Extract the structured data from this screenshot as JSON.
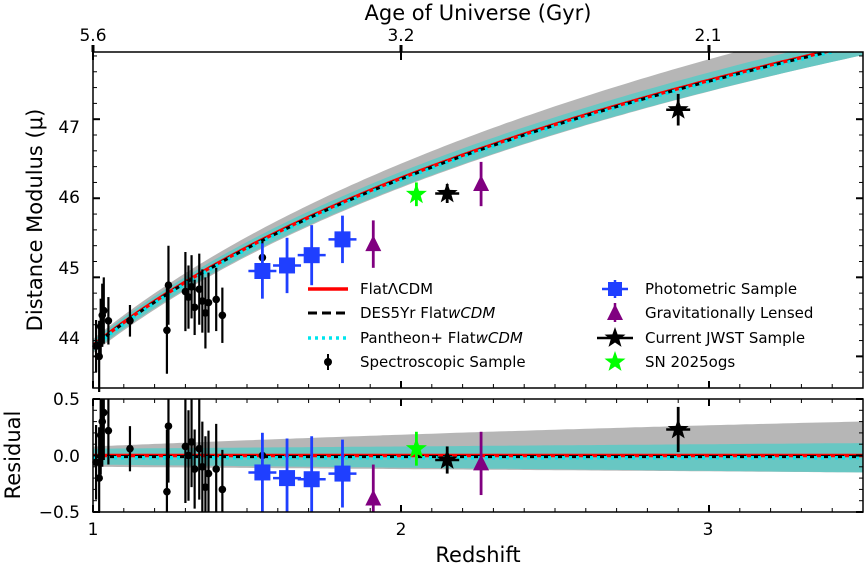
{
  "chart_data": {
    "type": "scatter",
    "title": "",
    "top_axis": {
      "label": "Age of Universe (Gyr)",
      "ticks": [
        {
          "z": 1.0,
          "label": "5.6"
        },
        {
          "z": 2.0,
          "label": "3.2"
        },
        {
          "z": 3.0,
          "label": "2.1"
        }
      ]
    },
    "xlabel": "Redshift",
    "xlim": [
      1.0,
      3.5
    ],
    "x_ticks": [
      1,
      2,
      3
    ],
    "main_panel": {
      "ylabel": "Distance Modulus (μ)",
      "ylim": [
        43.6,
        47.85
      ],
      "y_ticks": [
        44,
        45,
        46,
        47
      ]
    },
    "residual_panel": {
      "ylabel": "Residual",
      "ylim": [
        -0.5,
        0.5
      ],
      "y_ticks": [
        -0.5,
        0.0,
        0.5
      ],
      "y_tick_labels": [
        "−0.5",
        "0.0",
        "0.5"
      ]
    },
    "model_curves": [
      {
        "name": "FlatΛCDM",
        "style": "solid",
        "color": "#ff0000"
      },
      {
        "name": "DES5Yr Flat",
        "name_italic": "wCDM",
        "style": "dashed",
        "color": "#000000"
      },
      {
        "name": "Pantheon+ Flat",
        "name_italic": "wCDM",
        "style": "dotted",
        "color": "#00e5ee"
      }
    ],
    "bands": {
      "gray_color": "#a9a9a9",
      "cyan_color": "#5fc9c4"
    },
    "series": [
      {
        "name": "Spectroscopic Sample",
        "marker": "circle",
        "color": "#000000",
        "points": [
          {
            "z": 1.01,
            "mu": 44.13,
            "err": 0.33,
            "res": -0.06
          },
          {
            "z": 1.02,
            "mu": 44.0,
            "err": 0.45,
            "res": -0.2
          },
          {
            "z": 1.025,
            "mu": 44.38,
            "err": 0.35,
            "res": 0.18
          },
          {
            "z": 1.03,
            "mu": 44.52,
            "err": 0.4,
            "res": 0.3
          },
          {
            "z": 1.035,
            "mu": 44.58,
            "err": 0.42,
            "res": 0.38
          },
          {
            "z": 1.05,
            "mu": 44.45,
            "err": 0.3,
            "res": 0.22
          },
          {
            "z": 1.12,
            "mu": 44.45,
            "err": 0.2,
            "res": 0.06
          },
          {
            "z": 1.24,
            "mu": 44.33,
            "err": 0.55,
            "res": -0.32
          },
          {
            "z": 1.245,
            "mu": 44.9,
            "err": 0.5,
            "res": 0.26
          },
          {
            "z": 1.3,
            "mu": 44.82,
            "err": 0.5,
            "res": 0.08
          },
          {
            "z": 1.31,
            "mu": 44.75,
            "err": 0.4,
            "res": 0.0
          },
          {
            "z": 1.32,
            "mu": 44.88,
            "err": 0.4,
            "res": 0.12
          },
          {
            "z": 1.33,
            "mu": 44.62,
            "err": 0.35,
            "res": -0.12
          },
          {
            "z": 1.345,
            "mu": 44.85,
            "err": 0.45,
            "res": 0.06
          },
          {
            "z": 1.355,
            "mu": 44.7,
            "err": 0.4,
            "res": -0.1
          },
          {
            "z": 1.365,
            "mu": 44.55,
            "err": 0.45,
            "res": -0.28
          },
          {
            "z": 1.375,
            "mu": 44.68,
            "err": 0.38,
            "res": -0.16
          },
          {
            "z": 1.4,
            "mu": 44.72,
            "err": 0.4,
            "res": -0.12
          },
          {
            "z": 1.42,
            "mu": 44.52,
            "err": 0.35,
            "res": -0.3
          },
          {
            "z": 1.55,
            "mu": 45.25,
            "err": 0.2,
            "res": 0.0
          }
        ]
      },
      {
        "name": "Photometric Sample",
        "marker": "square",
        "color": "#1f3fff",
        "points": [
          {
            "z": 1.55,
            "mu": 45.08,
            "err": 0.35,
            "res": -0.15
          },
          {
            "z": 1.63,
            "mu": 45.15,
            "err": 0.35,
            "res": -0.2
          },
          {
            "z": 1.71,
            "mu": 45.28,
            "err": 0.38,
            "res": -0.21
          },
          {
            "z": 1.81,
            "mu": 45.48,
            "err": 0.3,
            "res": -0.16
          }
        ]
      },
      {
        "name": "Gravitationally Lensed",
        "marker": "triangle",
        "color": "#800080",
        "points": [
          {
            "z": 1.91,
            "mu": 45.42,
            "err": 0.3,
            "res": -0.38
          },
          {
            "z": 2.26,
            "mu": 46.18,
            "err": 0.28,
            "res": -0.07
          }
        ]
      },
      {
        "name": "Current JWST Sample",
        "marker": "star",
        "color": "#000000",
        "points": [
          {
            "z": 2.15,
            "mu": 46.06,
            "err": 0.12,
            "res": -0.04
          },
          {
            "z": 2.9,
            "mu": 47.12,
            "err": 0.2,
            "res": 0.23
          }
        ]
      },
      {
        "name": "SN 2025ogs",
        "marker": "star",
        "color": "#00ff00",
        "points": [
          {
            "z": 2.05,
            "mu": 46.05,
            "err": 0.15,
            "res": 0.06
          }
        ]
      }
    ],
    "legend": {
      "placement": "lower-center",
      "items": [
        "FlatΛCDM",
        "DES5Yr Flat",
        "Pantheon+ Flat",
        "Spectroscopic Sample",
        "Photometric Sample",
        "Gravitationally Lensed",
        "Current JWST Sample",
        "SN 2025ogs"
      ]
    }
  }
}
